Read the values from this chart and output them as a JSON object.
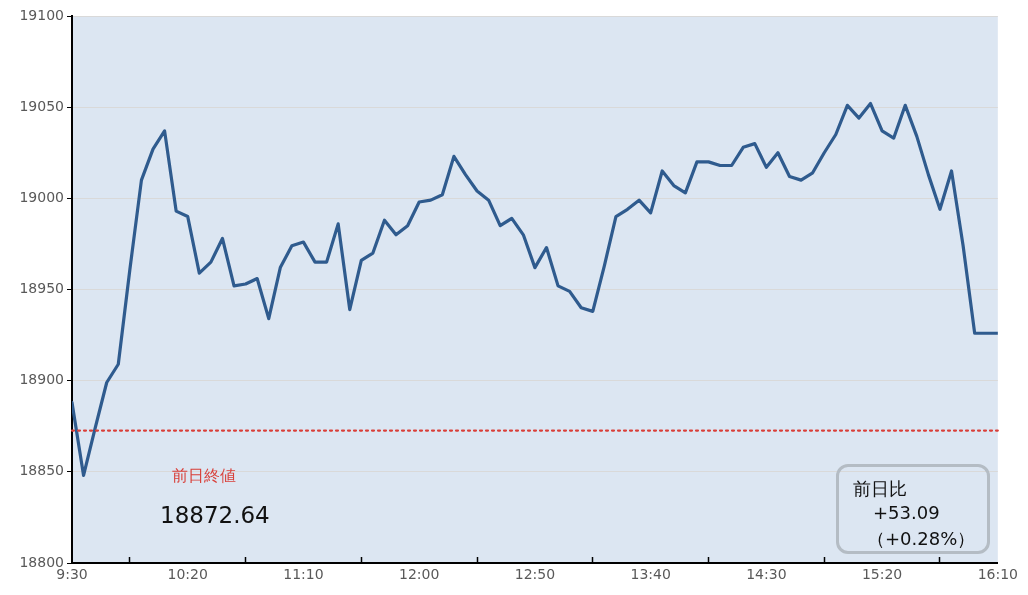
{
  "chart_data": {
    "type": "line",
    "x": [
      9.5,
      9.5833,
      9.6667,
      9.75,
      9.8333,
      9.9167,
      10,
      10.0833,
      10.1667,
      10.25,
      10.3333,
      10.4167,
      10.5,
      10.5833,
      10.6667,
      10.75,
      10.8333,
      10.9167,
      11,
      11.0833,
      11.1667,
      11.25,
      11.3333,
      11.4167,
      11.5,
      11.5833,
      11.6667,
      11.75,
      11.8333,
      11.9167,
      12,
      12.0833,
      12.1667,
      12.25,
      12.3333,
      12.4167,
      12.5,
      12.5833,
      12.6667,
      12.75,
      12.8333,
      12.9167,
      13,
      13.0833,
      13.1667,
      13.25,
      13.3333,
      13.4167,
      13.5,
      13.5833,
      13.6667,
      13.75,
      13.8333,
      13.9167,
      14,
      14.0833,
      14.1667,
      14.25,
      14.3333,
      14.4167,
      14.5,
      14.5833,
      14.6667,
      14.75,
      14.8333,
      14.9167,
      15,
      15.0833,
      15.1667,
      15.25,
      15.3333,
      15.4167,
      15.5,
      15.5833,
      15.6667,
      15.75,
      15.8333,
      15.9167,
      16,
      16.0833,
      16.1667
    ],
    "series": [
      {
        "color": "#2f5b8e",
        "values": [
          18888,
          18848,
          18874,
          18899,
          18909,
          18961,
          19010,
          19027,
          19037,
          18993,
          18990,
          18959,
          18965,
          18978,
          18952,
          18953,
          18956,
          18934,
          18962,
          18974,
          18976,
          18965,
          18965,
          18986,
          18939,
          18966,
          18970,
          18988,
          18980,
          18985,
          18998,
          18999,
          19002,
          19023,
          19013,
          19004,
          18999,
          18985,
          18989,
          18980,
          18962,
          18973,
          18952,
          18949,
          18940,
          18938,
          18963,
          18990,
          18994,
          18999,
          18992,
          19015,
          19007,
          19003,
          19020,
          19020,
          19018,
          19018,
          19028,
          19030,
          19017,
          19025,
          19012,
          19010,
          19014,
          19025,
          19035,
          19051,
          19044,
          19052,
          19037,
          19033,
          19051,
          19034,
          19013,
          18994,
          19015,
          18974,
          18926,
          18926,
          18926
        ]
      }
    ],
    "xlim": [
      9.5,
      16.1667
    ],
    "xticks": [
      {
        "value": 9.5,
        "label": "9:30"
      },
      {
        "value": 9.9167,
        "label": null
      },
      {
        "value": 10.3333,
        "label": "10:20"
      },
      {
        "value": 10.75,
        "label": null
      },
      {
        "value": 11.1667,
        "label": "11:10"
      },
      {
        "value": 11.5833,
        "label": null
      },
      {
        "value": 12,
        "label": "12:00"
      },
      {
        "value": 12.4167,
        "label": null
      },
      {
        "value": 12.8333,
        "label": "12:50"
      },
      {
        "value": 13.25,
        "label": null
      },
      {
        "value": 13.6667,
        "label": "13:40"
      },
      {
        "value": 14.0833,
        "label": null
      },
      {
        "value": 14.5,
        "label": "14:30"
      },
      {
        "value": 14.9167,
        "label": null
      },
      {
        "value": 15.3333,
        "label": "15:20"
      },
      {
        "value": 15.75,
        "label": null
      },
      {
        "value": 16.1667,
        "label": "16:10"
      }
    ],
    "ylim": [
      18800,
      19100
    ],
    "yticks": [
      18800,
      18850,
      18900,
      18950,
      19000,
      19050,
      19100
    ],
    "grid": "y",
    "legend": false,
    "marker": "none",
    "line_style": "solid",
    "ref_lines": [
      {
        "axis": "y",
        "value": 18872.64,
        "label": "前日終値",
        "color": "#d9403a",
        "line_style": "dotted"
      }
    ],
    "annotations": [
      "18872.64",
      "前日比",
      "+53.09",
      "（+0.28%）"
    ]
  }
}
